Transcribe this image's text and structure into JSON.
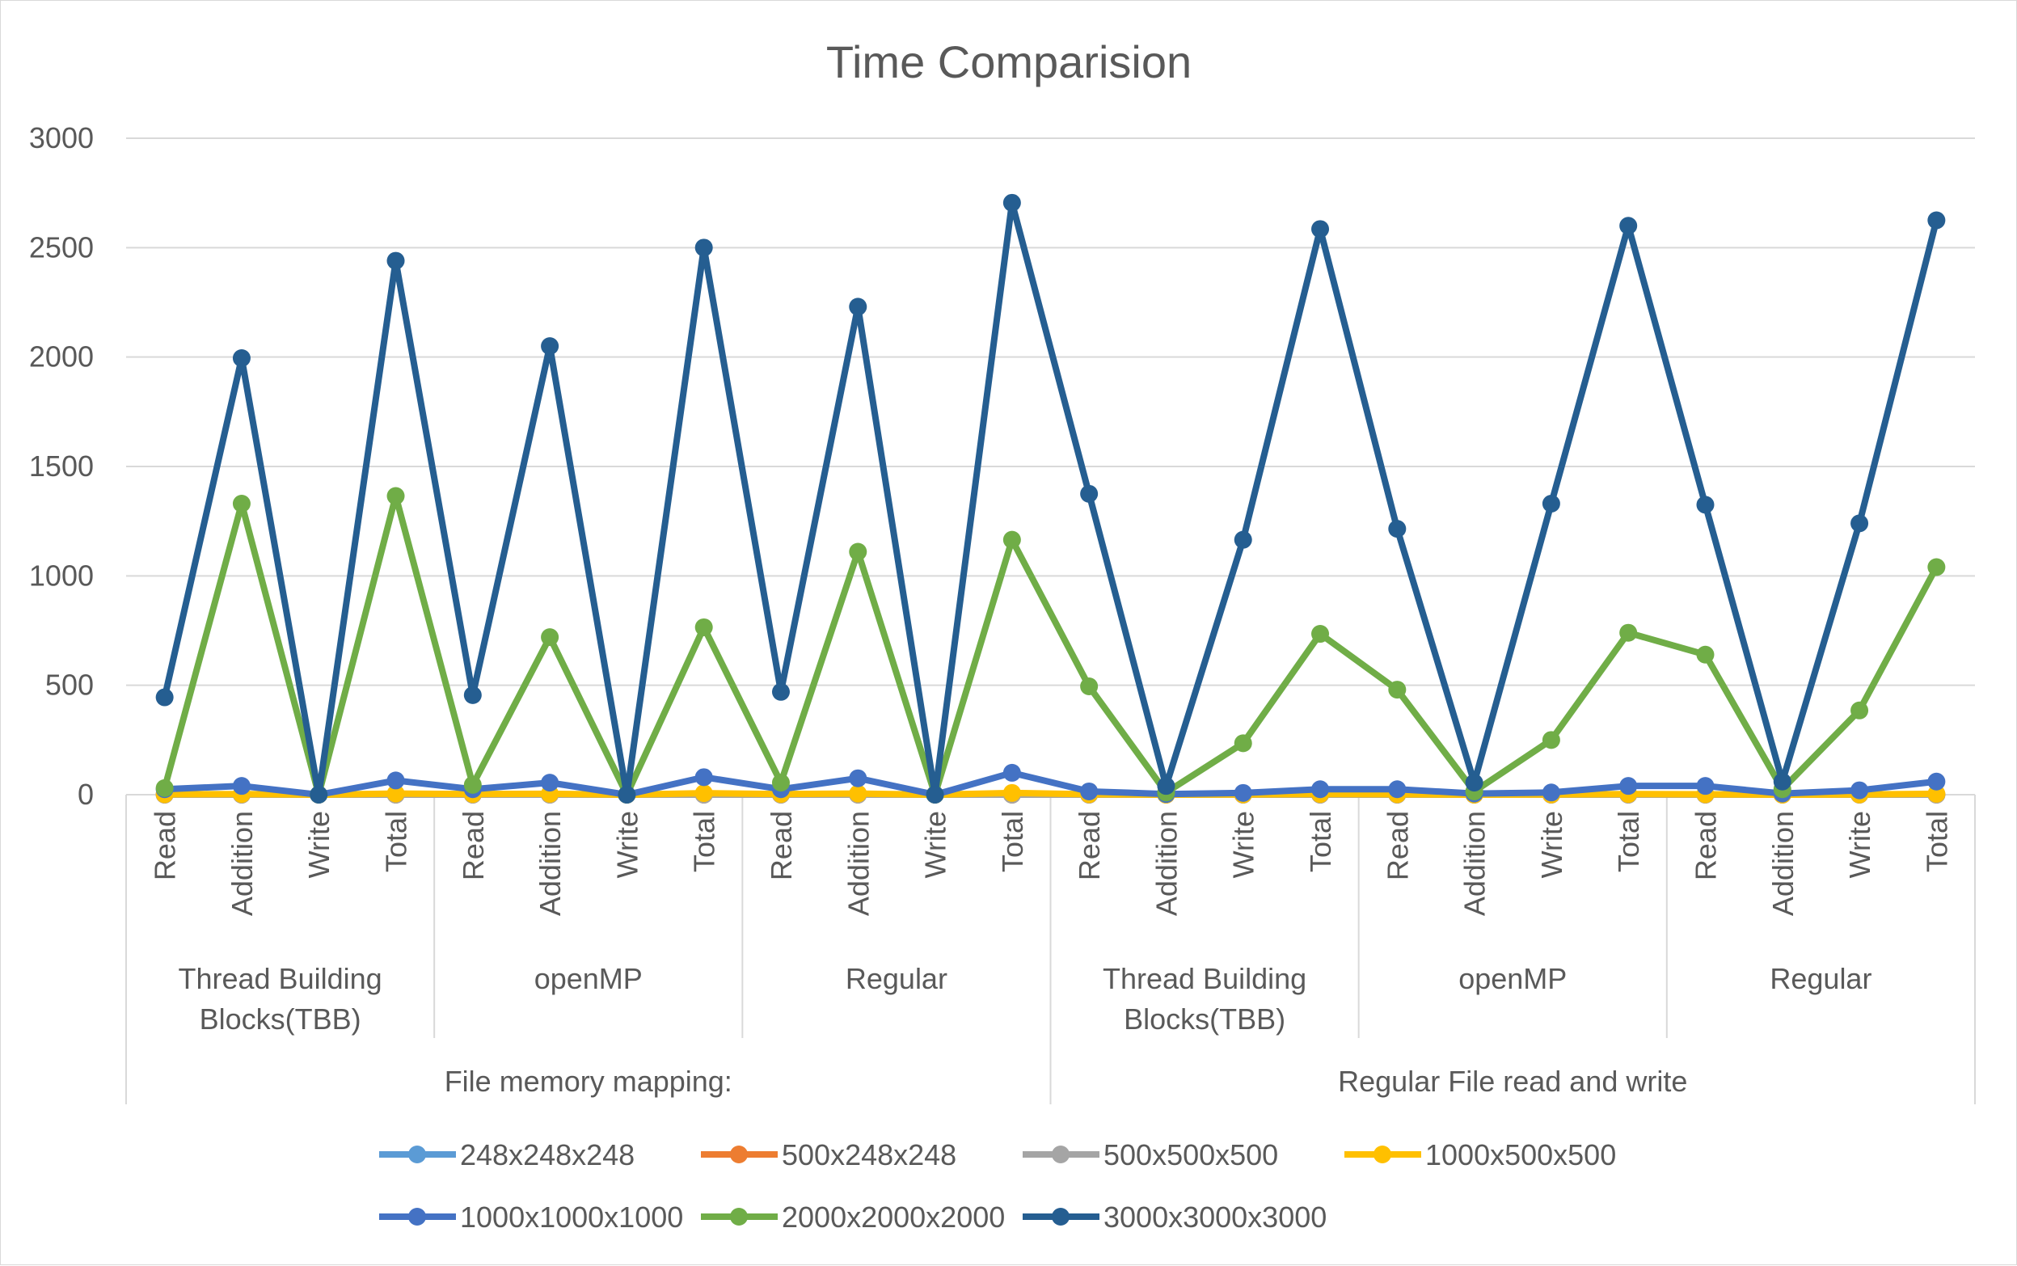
{
  "chart_data": {
    "type": "line",
    "title": "Time Comparision",
    "xlabel": "",
    "ylabel": "",
    "ylim": [
      0,
      3000
    ],
    "yticks": [
      "0",
      "500",
      "1000",
      "1500",
      "2000",
      "2500",
      "3000"
    ],
    "grid": true,
    "legend_position": "bottom",
    "categories": [
      "Read",
      "Addition",
      "Write",
      "Total",
      "Read",
      "Addition",
      "Write",
      "Total",
      "Read",
      "Addition",
      "Write",
      "Total",
      "Read",
      "Addition",
      "Write",
      "Total",
      "Read",
      "Addition",
      "Write",
      "Total",
      "Read",
      "Addition",
      "Write",
      "Total"
    ],
    "subgroups": [
      {
        "label": "Thread Building Blocks(TBB)",
        "lines": [
          "Thread Building",
          "Blocks(TBB)"
        ]
      },
      {
        "label": "openMP",
        "lines": [
          "openMP"
        ]
      },
      {
        "label": "Regular",
        "lines": [
          "Regular"
        ]
      },
      {
        "label": "Thread Building Blocks(TBB)",
        "lines": [
          "Thread Building",
          "Blocks(TBB)"
        ]
      },
      {
        "label": "openMP",
        "lines": [
          "openMP"
        ]
      },
      {
        "label": "Regular",
        "lines": [
          "Regular"
        ]
      }
    ],
    "groups": [
      "File memory mapping:",
      "Regular File read and write"
    ],
    "series": [
      {
        "name": "248x248x248",
        "color": "#5b9bd5",
        "values": [
          0,
          0,
          0,
          0,
          0,
          0,
          0,
          0,
          0,
          0,
          0,
          0,
          0,
          0,
          0,
          0,
          0,
          0,
          0,
          0,
          0,
          0,
          0,
          0
        ]
      },
      {
        "name": "500x248x248",
        "color": "#ed7d31",
        "values": [
          0,
          0,
          0,
          0,
          0,
          0,
          0,
          0,
          0,
          0,
          0,
          0,
          0,
          0,
          0,
          0,
          0,
          0,
          0,
          0,
          0,
          0,
          0,
          0
        ]
      },
      {
        "name": "500x500x500",
        "color": "#a5a5a5",
        "values": [
          0,
          0,
          0,
          0,
          0,
          0,
          0,
          0,
          0,
          0,
          0,
          0,
          0,
          0,
          0,
          0,
          0,
          0,
          0,
          0,
          0,
          0,
          0,
          0
        ]
      },
      {
        "name": "1000x500x500",
        "color": "#ffc000",
        "values": [
          2,
          3,
          0,
          5,
          3,
          4,
          0,
          7,
          3,
          5,
          0,
          8,
          2,
          0,
          1,
          3,
          2,
          0,
          1,
          3,
          2,
          0,
          1,
          4
        ]
      },
      {
        "name": "1000x1000x1000",
        "color": "#4472c4",
        "values": [
          25,
          40,
          0,
          65,
          25,
          55,
          0,
          80,
          25,
          75,
          0,
          100,
          15,
          3,
          8,
          25,
          25,
          5,
          10,
          40,
          40,
          5,
          20,
          60
        ]
      },
      {
        "name": "2000x2000x2000",
        "color": "#70ad47",
        "values": [
          30,
          1330,
          0,
          1365,
          45,
          720,
          0,
          765,
          55,
          1110,
          0,
          1165,
          495,
          10,
          235,
          735,
          480,
          15,
          250,
          740,
          640,
          25,
          385,
          1040
        ]
      },
      {
        "name": "3000x3000x3000",
        "color": "#255e91",
        "values": [
          445,
          1995,
          0,
          2440,
          455,
          2050,
          0,
          2500,
          470,
          2230,
          0,
          2705,
          1375,
          40,
          1165,
          2585,
          1215,
          55,
          1330,
          2600,
          1325,
          60,
          1240,
          2625
        ]
      }
    ]
  }
}
